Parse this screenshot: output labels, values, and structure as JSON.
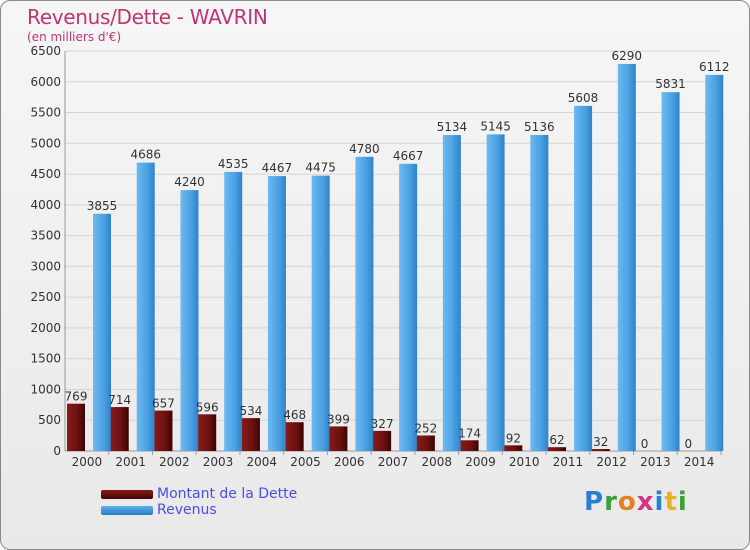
{
  "header": {
    "title": "Revenus/Dette - WAVRIN",
    "subtitle": "(en milliers d'€)"
  },
  "chart_data": {
    "type": "bar",
    "categories": [
      "2000",
      "2001",
      "2002",
      "2003",
      "2004",
      "2005",
      "2006",
      "2007",
      "2008",
      "2009",
      "2010",
      "2011",
      "2012",
      "2013",
      "2014"
    ],
    "series": [
      {
        "name": "Montant de la Dette",
        "color": "#6b1010",
        "values": [
          769,
          714,
          657,
          596,
          534,
          468,
          399,
          327,
          252,
          174,
          92,
          62,
          32,
          0,
          0
        ]
      },
      {
        "name": "Revenus",
        "color": "#4a9fe0",
        "values": [
          3855,
          4686,
          4240,
          4535,
          4467,
          4475,
          4780,
          4667,
          5134,
          5145,
          5136,
          5608,
          6290,
          5831,
          6112
        ]
      }
    ],
    "ylim": [
      0,
      6500
    ],
    "yticks": [
      0,
      500,
      1000,
      1500,
      2000,
      2500,
      3000,
      3500,
      4000,
      4500,
      5000,
      5500,
      6000,
      6500
    ],
    "grid": true,
    "legend_position": "bottom-left"
  },
  "legend": {
    "items": [
      {
        "label": "Montant de la Dette",
        "color": "#6b1010"
      },
      {
        "label": "Revenus",
        "color": "#4a9fe0"
      }
    ]
  },
  "logo": {
    "text": "Proxiti"
  }
}
